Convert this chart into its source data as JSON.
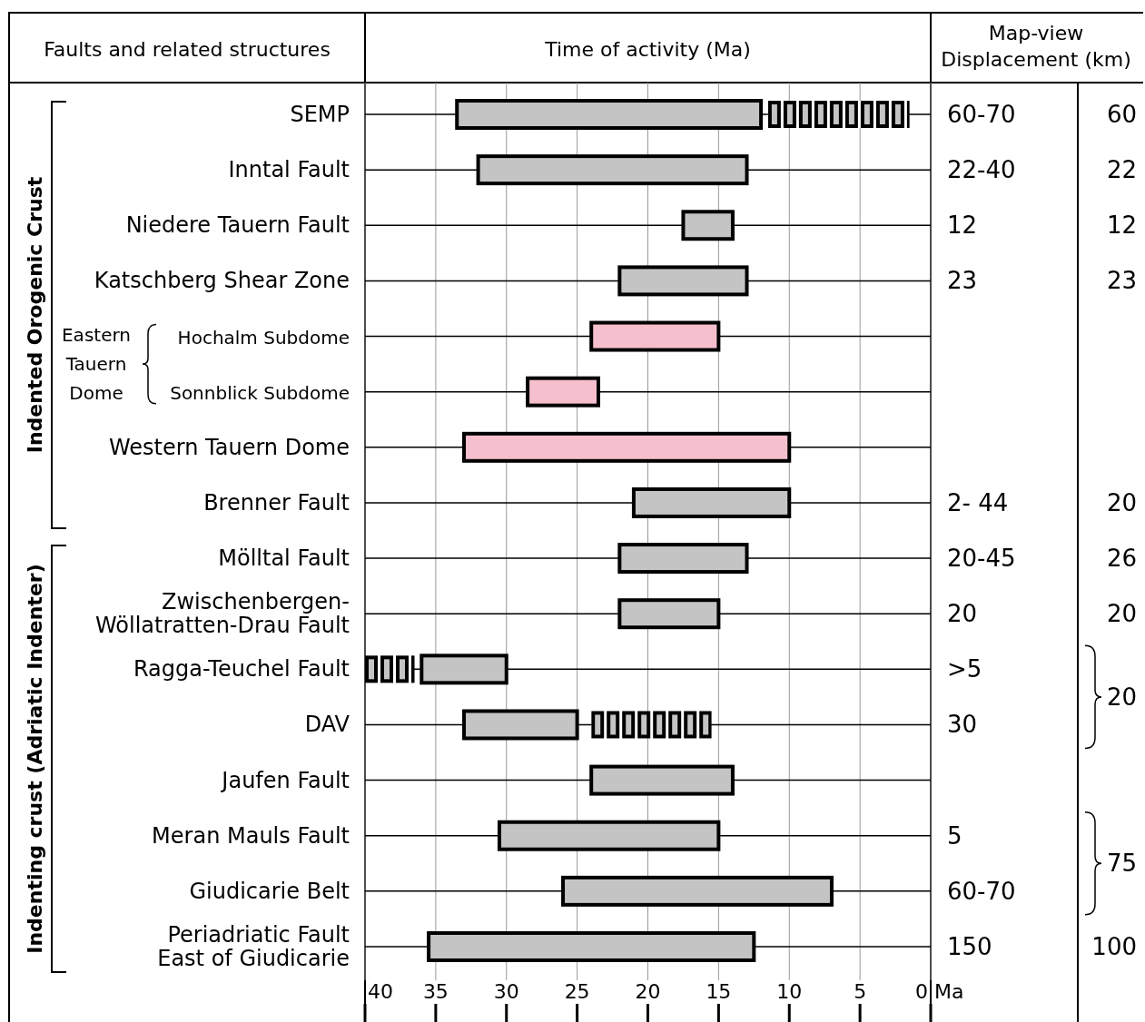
{
  "chart_data": [
    {
      "type": "bar",
      "orientation": "horizontal",
      "title": "Time of activity (Ma)",
      "ylabel": "Faults and related structures",
      "xlabel": "Ma",
      "xlim": [
        40,
        0
      ],
      "xticks": [
        40,
        35,
        30,
        25,
        20,
        15,
        10,
        5,
        0
      ],
      "grid": "x",
      "categories": [
        "SEMP",
        "Inntal Fault",
        "Niedere Tauern Fault",
        "Katschberg Shear Zone",
        "Hochalm Subdome",
        "Sonnblick Subdome",
        "Western Tauern Dome",
        "Brenner Fault",
        "Mölltal Fault",
        "Zwischenbergen-\nWöllatratten-Drau Fault",
        "Ragga-Teuchel Fault",
        "DAV",
        "Jaufen Fault",
        "Meran Mauls Fault",
        "Giudicarie Belt",
        "Periadriatic Fault\nEast of Giudicarie"
      ],
      "series": [
        {
          "colors": [
            "#c4c4c4",
            "#c4c4c4",
            "#c4c4c4",
            "#c4c4c4",
            "#f5bfcd",
            "#f5bfcd",
            "#f5bfcd",
            "#c4c4c4",
            "#c4c4c4",
            "#c4c4c4",
            "#c4c4c4",
            "#c4c4c4",
            "#c4c4c4",
            "#c4c4c4",
            "#c4c4c4",
            "#c4c4c4"
          ],
          "base": [
            12,
            13,
            14,
            13,
            15,
            23.5,
            10,
            10,
            13,
            15,
            30,
            25,
            14,
            15,
            7,
            12.5
          ],
          "values": [
            21.5,
            19,
            3.5,
            9,
            9,
            5,
            23,
            11,
            9,
            7,
            6,
            8,
            10,
            15.5,
            19,
            23
          ]
        },
        {
          "color": "#c4c4c4",
          "line_style": "dashed",
          "base": [
            1.5,
            null,
            null,
            null,
            null,
            null,
            null,
            null,
            null,
            null,
            36.5,
            15.5,
            null,
            null,
            null,
            null
          ],
          "values": [
            10,
            null,
            null,
            null,
            null,
            null,
            null,
            null,
            null,
            null,
            3.5,
            8.5,
            null,
            null,
            null,
            null
          ]
        }
      ],
      "annotations": [
        "Indented Orogenic Crust",
        "Indenting crust (Adriatic Indenter)",
        "Eastern Tauern Dome"
      ]
    },
    {
      "type": "other",
      "title": "Map-view\nDisplacement (km)",
      "cell_labels": [
        [
          "60-70",
          "60"
        ],
        [
          "22-40",
          "22"
        ],
        [
          "12",
          "12"
        ],
        [
          "23",
          "23"
        ],
        [
          null,
          null
        ],
        [
          null,
          null
        ],
        [
          null,
          null
        ],
        [
          "2- 44",
          "20"
        ],
        [
          "20-45",
          "26"
        ],
        [
          "20",
          "20"
        ],
        [
          ">5",
          "20"
        ],
        [
          "30",
          null
        ],
        [
          null,
          null
        ],
        [
          "5",
          "75"
        ],
        [
          "60-70",
          null
        ],
        [
          "150",
          "100"
        ]
      ]
    }
  ]
}
